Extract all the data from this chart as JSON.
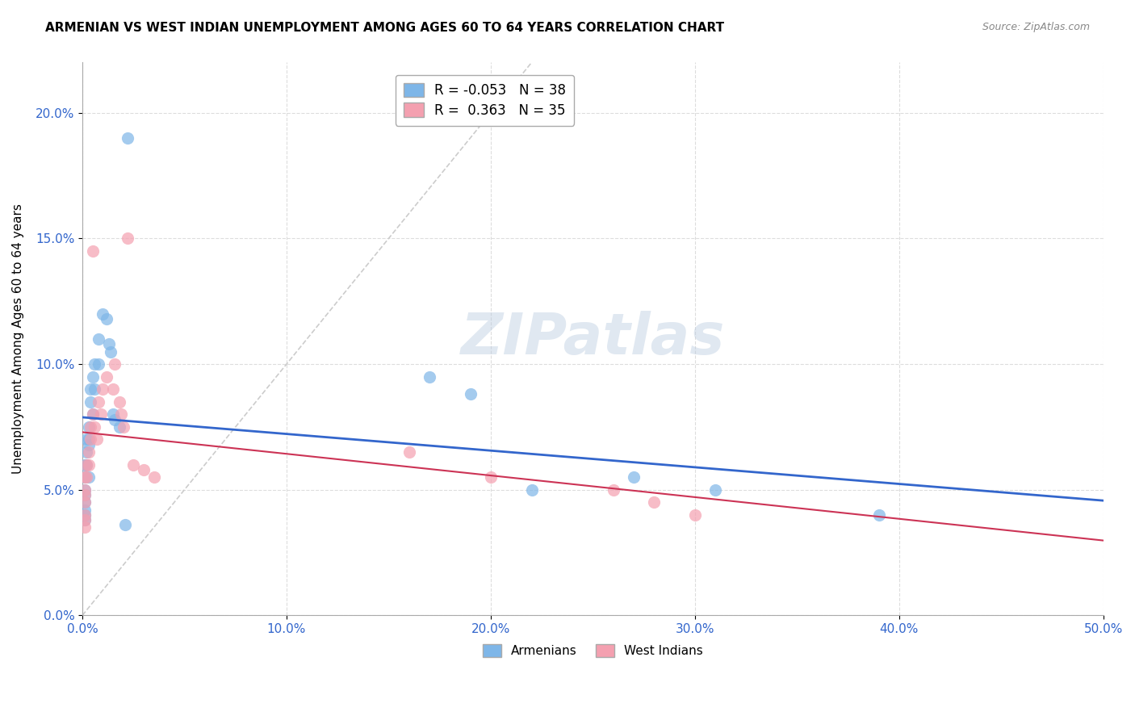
{
  "title": "ARMENIAN VS WEST INDIAN UNEMPLOYMENT AMONG AGES 60 TO 64 YEARS CORRELATION CHART",
  "source": "Source: ZipAtlas.com",
  "ylabel": "Unemployment Among Ages 60 to 64 years",
  "xlim": [
    0.0,
    0.5
  ],
  "ylim": [
    0.0,
    0.22
  ],
  "xticks": [
    0.0,
    0.1,
    0.2,
    0.3,
    0.4,
    0.5
  ],
  "yticks": [
    0.0,
    0.05,
    0.1,
    0.15,
    0.2
  ],
  "xticklabels": [
    "0.0%",
    "10.0%",
    "20.0%",
    "30.0%",
    "40.0%",
    "50.0%"
  ],
  "yticklabels": [
    "0.0%",
    "5.0%",
    "10.0%",
    "15.0%",
    "20.0%"
  ],
  "armenian_color": "#7EB6E8",
  "west_indian_color": "#F4A0B0",
  "trendline_armenian_color": "#3366CC",
  "trendline_west_indian_color": "#CC3355",
  "diagonal_color": "#CCCCCC",
  "legend_label_armenian": "R = -0.053   N = 38",
  "legend_label_west_indian": "R =  0.363   N = 35",
  "legend_armenians": "Armenians",
  "legend_west_indians": "West Indians",
  "watermark": "ZIPatlas",
  "armenians_x": [
    0.001,
    0.001,
    0.001,
    0.001,
    0.001,
    0.001,
    0.001,
    0.001,
    0.002,
    0.002,
    0.002,
    0.003,
    0.003,
    0.003,
    0.003,
    0.004,
    0.004,
    0.005,
    0.005,
    0.006,
    0.006,
    0.008,
    0.008,
    0.01,
    0.012,
    0.013,
    0.014,
    0.015,
    0.016,
    0.018,
    0.021,
    0.022,
    0.17,
    0.19,
    0.22,
    0.27,
    0.31,
    0.39
  ],
  "armenians_y": [
    0.06,
    0.055,
    0.05,
    0.048,
    0.045,
    0.042,
    0.04,
    0.038,
    0.07,
    0.065,
    0.06,
    0.075,
    0.07,
    0.068,
    0.055,
    0.09,
    0.085,
    0.095,
    0.08,
    0.1,
    0.09,
    0.11,
    0.1,
    0.12,
    0.118,
    0.108,
    0.105,
    0.08,
    0.078,
    0.075,
    0.036,
    0.19,
    0.095,
    0.088,
    0.05,
    0.055,
    0.05,
    0.04
  ],
  "west_indians_x": [
    0.001,
    0.001,
    0.001,
    0.001,
    0.001,
    0.001,
    0.001,
    0.002,
    0.002,
    0.003,
    0.003,
    0.004,
    0.004,
    0.005,
    0.005,
    0.006,
    0.007,
    0.008,
    0.009,
    0.01,
    0.012,
    0.015,
    0.016,
    0.018,
    0.019,
    0.02,
    0.022,
    0.025,
    0.03,
    0.035,
    0.16,
    0.2,
    0.26,
    0.28,
    0.3
  ],
  "west_indians_y": [
    0.055,
    0.05,
    0.048,
    0.045,
    0.04,
    0.038,
    0.035,
    0.06,
    0.055,
    0.065,
    0.06,
    0.075,
    0.07,
    0.145,
    0.08,
    0.075,
    0.07,
    0.085,
    0.08,
    0.09,
    0.095,
    0.09,
    0.1,
    0.085,
    0.08,
    0.075,
    0.15,
    0.06,
    0.058,
    0.055,
    0.065,
    0.055,
    0.05,
    0.045,
    0.04
  ]
}
